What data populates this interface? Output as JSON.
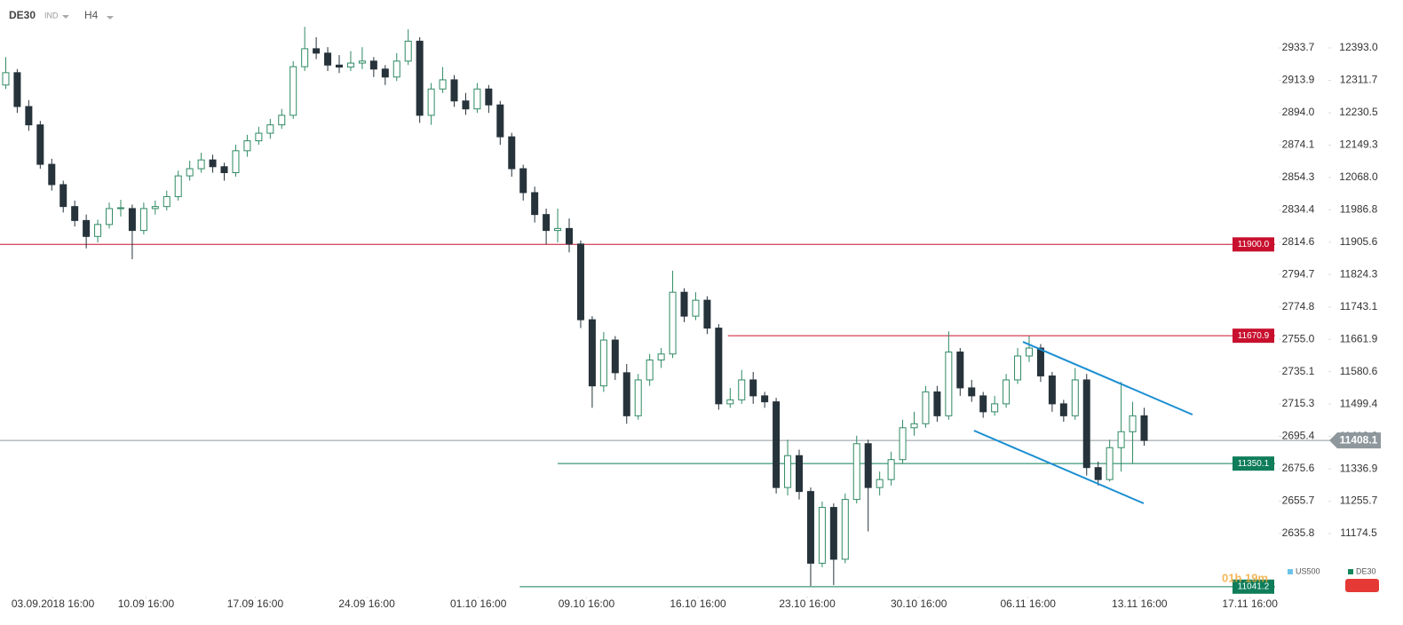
{
  "chart_data": {
    "type": "candlestick",
    "symbol": "DE30",
    "market": "IND",
    "timeframe": "H4",
    "countdown": "01h 19m",
    "up_color": "#2f8a63",
    "down_color": "#26333b",
    "grid": false,
    "xlim": [
      -0.5,
      110.7
    ],
    "xticks": [
      {
        "value": 4.1,
        "label": "03.09.2018 16:00"
      },
      {
        "value": 12.2,
        "label": "10.09 16:00"
      },
      {
        "value": 21.7,
        "label": "17.09 16:00"
      },
      {
        "value": 31.4,
        "label": "24.09 16:00"
      },
      {
        "value": 41.1,
        "label": "01.10 16:00"
      },
      {
        "value": 50.5,
        "label": "09.10 16:00"
      },
      {
        "value": 60.2,
        "label": "16.10 16:00"
      },
      {
        "value": 69.7,
        "label": "23.10 16:00"
      },
      {
        "value": 79.4,
        "label": "30.10 16:00"
      },
      {
        "value": 88.9,
        "label": "06.11 16:00"
      },
      {
        "value": 98.6,
        "label": "13.11 16:00"
      },
      {
        "value": 108.2,
        "label": "17.11 16:00"
      }
    ],
    "ylim": [
      11016.3,
      12513.3
    ],
    "yticks": [
      {
        "value": 12393,
        "label": "12393.0"
      },
      12311.7,
      12230.5,
      12149.3,
      {
        "value": 12068,
        "label": "12068.0"
      },
      11986.8,
      11905.6,
      11824.3,
      11743.1,
      11661.9,
      11580.6,
      11499.4,
      11418.2,
      11336.9,
      11255.7,
      11174.5
    ],
    "y2lim": [
      2597.1,
      2963.1
    ],
    "y2ticks": [
      2933.7,
      2913.9,
      {
        "value": 2894,
        "label": "2894.0"
      },
      2874.1,
      2854.3,
      2834.4,
      2814.6,
      2794.7,
      2774.8,
      {
        "value": 2755,
        "label": "2755.0"
      },
      2735.1,
      2715.3,
      2695.4,
      2675.6,
      2655.7,
      2635.8
    ],
    "ohlc": [
      [
        12300,
        12370,
        12290,
        12331
      ],
      [
        12331,
        12340,
        12230,
        12246
      ],
      [
        12246,
        12262,
        12185,
        12200
      ],
      [
        12200,
        12210,
        12090,
        12101
      ],
      [
        12101,
        12115,
        12035,
        12050
      ],
      [
        12050,
        12060,
        11980,
        11995
      ],
      [
        11995,
        12010,
        11945,
        11960
      ],
      [
        11960,
        11975,
        11890,
        11920
      ],
      [
        11920,
        11962,
        11905,
        11950
      ],
      [
        11950,
        12005,
        11940,
        11990
      ],
      [
        11990,
        12012,
        11970,
        11992
      ],
      [
        11990,
        12000,
        11863,
        11935
      ],
      [
        11935,
        12005,
        11925,
        11990
      ],
      [
        11990,
        12010,
        11975,
        11995
      ],
      [
        11995,
        12035,
        11985,
        12020
      ],
      [
        12020,
        12085,
        12010,
        12072
      ],
      [
        12072,
        12110,
        12060,
        12090
      ],
      [
        12090,
        12130,
        12080,
        12112
      ],
      [
        12112,
        12125,
        12080,
        12095
      ],
      [
        12095,
        12105,
        12060,
        12080
      ],
      [
        12080,
        12150,
        12070,
        12135
      ],
      [
        12135,
        12175,
        12120,
        12160
      ],
      [
        12160,
        12195,
        12150,
        12179
      ],
      [
        12179,
        12215,
        12165,
        12200
      ],
      [
        12200,
        12240,
        12190,
        12224
      ],
      [
        12224,
        12360,
        12215,
        12346
      ],
      [
        12346,
        12446,
        12335,
        12391
      ],
      [
        12391,
        12420,
        12365,
        12380
      ],
      [
        12380,
        12395,
        12335,
        12350
      ],
      [
        12350,
        12375,
        12330,
        12345
      ],
      [
        12345,
        12385,
        12335,
        12355
      ],
      [
        12355,
        12395,
        12340,
        12360
      ],
      [
        12360,
        12370,
        12320,
        12340
      ],
      [
        12340,
        12350,
        12300,
        12320
      ],
      [
        12320,
        12380,
        12310,
        12360
      ],
      [
        12360,
        12440,
        12350,
        12410
      ],
      [
        12410,
        12420,
        12205,
        12224
      ],
      [
        12224,
        12305,
        12200,
        12290
      ],
      [
        12290,
        12345,
        12280,
        12313
      ],
      [
        12313,
        12325,
        12245,
        12260
      ],
      [
        12260,
        12280,
        12225,
        12240
      ],
      [
        12240,
        12305,
        12230,
        12290
      ],
      [
        12290,
        12300,
        12230,
        12250
      ],
      [
        12250,
        12260,
        12150,
        12170
      ],
      [
        12170,
        12180,
        12070,
        12090
      ],
      [
        12090,
        12100,
        12010,
        12030
      ],
      [
        12030,
        12045,
        11955,
        11975
      ],
      [
        11975,
        11990,
        11900,
        11935
      ],
      [
        11935,
        11990,
        11905,
        11940
      ],
      [
        11940,
        11965,
        11880,
        11901
      ],
      [
        11901,
        11910,
        11690,
        11711
      ],
      [
        11711,
        11720,
        11490,
        11545
      ],
      [
        11545,
        11680,
        11530,
        11660
      ],
      [
        11660,
        11670,
        11560,
        11578
      ],
      [
        11578,
        11600,
        11450,
        11470
      ],
      [
        11470,
        11575,
        11460,
        11560
      ],
      [
        11560,
        11625,
        11545,
        11610
      ],
      [
        11610,
        11640,
        11590,
        11625
      ],
      [
        11625,
        11834,
        11615,
        11780
      ],
      [
        11780,
        11790,
        11705,
        11720
      ],
      [
        11720,
        11780,
        11710,
        11760
      ],
      [
        11760,
        11770,
        11675,
        11690
      ],
      [
        11690,
        11700,
        11485,
        11500
      ],
      [
        11500,
        11540,
        11490,
        11510
      ],
      [
        11510,
        11585,
        11500,
        11560
      ],
      [
        11560,
        11580,
        11500,
        11520
      ],
      [
        11520,
        11530,
        11490,
        11505
      ],
      [
        11505,
        11515,
        11275,
        11290
      ],
      [
        11290,
        11410,
        11270,
        11370
      ],
      [
        11370,
        11385,
        11260,
        11280
      ],
      [
        11280,
        11290,
        11043,
        11100
      ],
      [
        11100,
        11255,
        11090,
        11240
      ],
      [
        11240,
        11250,
        11045,
        11110
      ],
      [
        11110,
        11275,
        11100,
        11260
      ],
      [
        11260,
        11420,
        11250,
        11400
      ],
      [
        11400,
        11410,
        11180,
        11290
      ],
      [
        11290,
        11330,
        11270,
        11310
      ],
      [
        11310,
        11380,
        11295,
        11360
      ],
      [
        11360,
        11460,
        11350,
        11440
      ],
      [
        11440,
        11480,
        11420,
        11450
      ],
      [
        11450,
        11545,
        11440,
        11530
      ],
      [
        11530,
        11545,
        11455,
        11470
      ],
      [
        11470,
        11682,
        11460,
        11630
      ],
      [
        11630,
        11640,
        11520,
        11540
      ],
      [
        11540,
        11560,
        11505,
        11520
      ],
      [
        11520,
        11530,
        11465,
        11480
      ],
      [
        11480,
        11520,
        11470,
        11500
      ],
      [
        11500,
        11575,
        11490,
        11560
      ],
      [
        11560,
        11640,
        11550,
        11620
      ],
      [
        11620,
        11670,
        11605,
        11640
      ],
      [
        11640,
        11650,
        11555,
        11570
      ],
      [
        11570,
        11580,
        11480,
        11500
      ],
      [
        11500,
        11510,
        11455,
        11470
      ],
      [
        11470,
        11590,
        11460,
        11560
      ],
      [
        11560,
        11575,
        11320,
        11340
      ],
      [
        11340,
        11355,
        11295,
        11310
      ],
      [
        11310,
        11410,
        11305,
        11390
      ],
      [
        11390,
        11555,
        11330,
        11430
      ],
      [
        11430,
        11505,
        11350,
        11470
      ],
      [
        11470,
        11490,
        11395,
        11408.1
      ]
    ],
    "levels": [
      {
        "value": 11900,
        "label": "11900.0",
        "color": "#c8102e",
        "from": -0.5
      },
      {
        "value": 11670.9,
        "label": "11670.9",
        "color": "#c8102e",
        "from": 62.8
      },
      {
        "value": 11350.1,
        "label": "11350.1",
        "color": "#0f7d5a",
        "from": 48
      },
      {
        "value": 11041.2,
        "label": "11041.2",
        "color": "#0f7d5a",
        "from": 44.7
      }
    ],
    "current_price": {
      "value": 11408.1,
      "color": "#8e979c"
    },
    "trendlines": [
      {
        "x": [
          88.46,
          103.2
        ],
        "y": [
          11655.6,
          11473
        ],
        "color": "#1b8fd2"
      },
      {
        "x": [
          84.2,
          98.96
        ],
        "y": [
          11432.9,
          11250.2
        ],
        "color": "#1b8fd2"
      }
    ],
    "legend": [
      {
        "name": "US500",
        "color": "#6cc3ea"
      },
      {
        "name": "DE30",
        "color": "#13875a"
      }
    ]
  }
}
